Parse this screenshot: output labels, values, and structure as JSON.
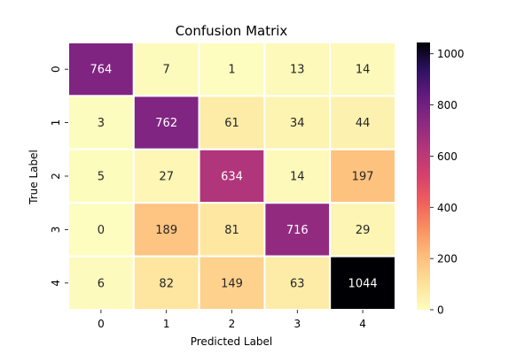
{
  "chart_data": {
    "type": "heatmap",
    "title": "Confusion Matrix",
    "xlabel": "Predicted Label",
    "ylabel": "True Label",
    "x_categories": [
      "0",
      "1",
      "2",
      "3",
      "4"
    ],
    "y_categories": [
      "0",
      "1",
      "2",
      "3",
      "4"
    ],
    "values": [
      [
        764,
        7,
        1,
        13,
        14
      ],
      [
        3,
        762,
        61,
        34,
        44
      ],
      [
        5,
        27,
        634,
        14,
        197
      ],
      [
        0,
        189,
        81,
        716,
        29
      ],
      [
        6,
        82,
        149,
        63,
        1044
      ]
    ],
    "colormap": "magma_r",
    "colorbar": {
      "range": [
        0,
        1044
      ],
      "ticks": [
        0,
        200,
        400,
        600,
        800,
        1000
      ],
      "tick_labels": [
        "0",
        "200",
        "400",
        "600",
        "800",
        "1000"
      ]
    },
    "cell_separator_color": "#ffffff"
  }
}
